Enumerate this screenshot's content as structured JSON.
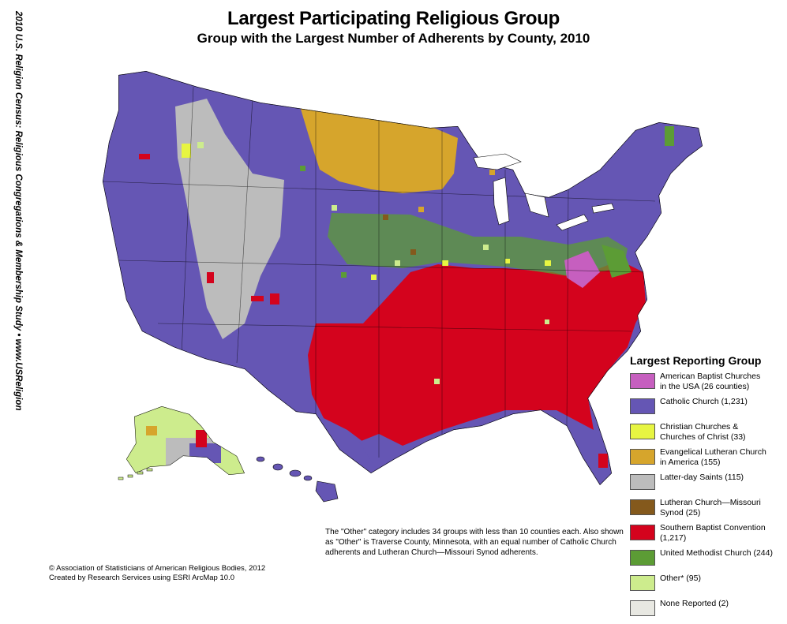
{
  "title": "Largest Participating Religious Group",
  "subtitle": "Group with the Largest Number of Adherents by County, 2010",
  "side_label": "2010 U.S. Religion Census: Religious Congregations & Membership Study  •  www.USReligionCensus.org",
  "legend": {
    "title": "Largest Reporting Group",
    "items": [
      {
        "label": "American Baptist Churches\nin the USA (26 counties)",
        "color": "#c65fbf"
      },
      {
        "label": "Catholic Church (1,231)",
        "color": "#6556b4"
      },
      {
        "label": "Christian Churches &\nChurches of Christ (33)",
        "color": "#e7f542"
      },
      {
        "label": "Evangelical Lutheran Church\nin America (155)",
        "color": "#d6a52c"
      },
      {
        "label": "Latter-day Saints (115)",
        "color": "#bcbcbc"
      },
      {
        "label": "Lutheran Church—Missouri\nSynod (25)",
        "color": "#84591c"
      },
      {
        "label": "Southern Baptist Convention\n(1,217)",
        "color": "#d4031d"
      },
      {
        "label": "United Methodist Church (244)",
        "color": "#5c9c35"
      },
      {
        "label": "Other* (95)",
        "color": "#cdec8d"
      },
      {
        "label": "None Reported (2)",
        "color": "#e8e8e2"
      }
    ]
  },
  "note": "The \"Other\" category includes 34 groups with less than 10 counties each. Also shown as \"Other\" is Traverse County, Minnesota, with an equal number of Catholic Church adherents and Lutheran Church—Missouri Synod adherents.",
  "copyright": "© Association of Statisticians of American Religious Bodies, 2012\nCreated by Research Services using ESRI ArcMap 10.0"
}
